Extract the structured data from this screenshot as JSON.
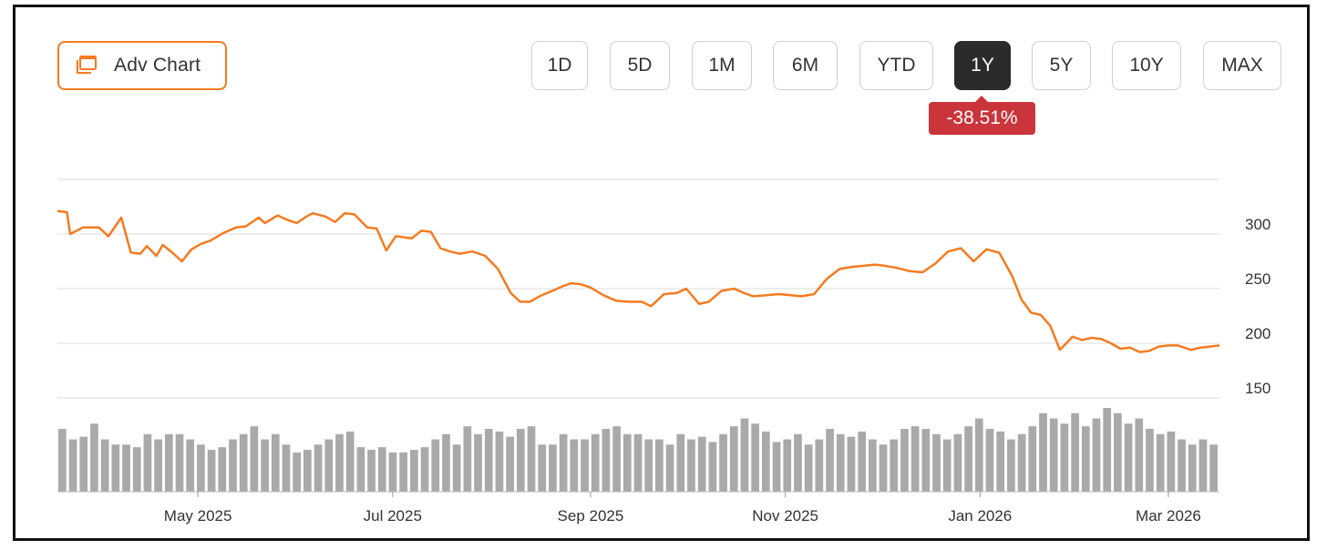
{
  "toolbar": {
    "adv_chart_label": "Adv Chart",
    "ranges": [
      "1D",
      "5D",
      "1M",
      "6M",
      "YTD",
      "1Y",
      "5Y",
      "10Y",
      "MAX"
    ],
    "active_range": "1Y",
    "change_label": "-38.51%",
    "change_color": "#c9353a",
    "accent_color": "#f47b20"
  },
  "chart_data": {
    "type": "line",
    "ylim": [
      150,
      350
    ],
    "yticks": [
      150,
      200,
      250,
      300
    ],
    "x_tick_labels": [
      "May 2025",
      "Jul 2025",
      "Sep 2025",
      "Nov 2025",
      "Jan 2026",
      "Mar 2026"
    ],
    "x_tick_dates": [
      "2025-05-01",
      "2025-07-01",
      "2025-09-01",
      "2025-11-01",
      "2026-01-01",
      "2026-03-01"
    ],
    "series": [
      {
        "color": "#f47b20",
        "x": [
          "2025-03-18",
          "2025-03-21",
          "2025-03-22",
          "2025-03-26",
          "2025-03-31",
          "2025-04-03",
          "2025-04-07",
          "2025-04-10",
          "2025-04-13",
          "2025-04-15",
          "2025-04-18",
          "2025-04-20",
          "2025-04-23",
          "2025-04-26",
          "2025-04-29",
          "2025-05-02",
          "2025-05-05",
          "2025-05-09",
          "2025-05-13",
          "2025-05-16",
          "2025-05-20",
          "2025-05-22",
          "2025-05-26",
          "2025-05-29",
          "2025-06-01",
          "2025-06-04",
          "2025-06-06",
          "2025-06-10",
          "2025-06-13",
          "2025-06-16",
          "2025-06-19",
          "2025-06-23",
          "2025-06-26",
          "2025-06-29",
          "2025-07-02",
          "2025-07-07",
          "2025-07-10",
          "2025-07-13",
          "2025-07-16",
          "2025-07-19",
          "2025-07-22",
          "2025-07-26",
          "2025-07-30",
          "2025-08-03",
          "2025-08-07",
          "2025-08-10",
          "2025-08-13",
          "2025-08-16",
          "2025-08-20",
          "2025-08-24",
          "2025-08-26",
          "2025-08-29",
          "2025-09-01",
          "2025-09-05",
          "2025-09-09",
          "2025-09-13",
          "2025-09-17",
          "2025-09-20",
          "2025-09-24",
          "2025-09-28",
          "2025-10-01",
          "2025-10-05",
          "2025-10-08",
          "2025-10-12",
          "2025-10-16",
          "2025-10-19",
          "2025-10-22",
          "2025-10-26",
          "2025-10-30",
          "2025-11-03",
          "2025-11-06",
          "2025-11-10",
          "2025-11-14",
          "2025-11-18",
          "2025-11-22",
          "2025-11-26",
          "2025-11-29",
          "2025-12-02",
          "2025-12-06",
          "2025-12-10",
          "2025-12-14",
          "2025-12-18",
          "2025-12-22",
          "2025-12-26",
          "2025-12-30",
          "2026-01-03",
          "2026-01-07",
          "2026-01-11",
          "2026-01-14",
          "2026-01-17",
          "2026-01-20",
          "2026-01-23",
          "2026-01-26",
          "2026-01-30",
          "2026-02-02",
          "2026-02-05",
          "2026-02-08",
          "2026-02-11",
          "2026-02-14",
          "2026-02-17",
          "2026-02-20",
          "2026-02-23",
          "2026-02-26",
          "2026-03-01",
          "2026-03-04",
          "2026-03-08",
          "2026-03-11",
          "2026-03-14",
          "2026-03-17"
        ],
        "values": [
          321,
          320,
          300,
          306,
          306,
          298,
          315,
          283,
          282,
          289,
          280,
          290,
          283,
          275,
          286,
          291,
          294,
          301,
          306,
          307,
          315,
          310,
          317,
          313,
          310,
          316,
          319,
          316,
          311,
          319,
          318,
          306,
          305,
          285,
          298,
          296,
          303,
          302,
          287,
          284,
          282,
          284,
          280,
          268,
          246,
          238,
          238,
          243,
          248,
          253,
          255,
          254,
          251,
          244,
          239,
          238,
          238,
          234,
          245,
          246,
          250,
          236,
          238,
          248,
          250,
          246,
          243,
          244,
          245,
          244,
          243,
          245,
          259,
          268,
          270,
          271,
          272,
          271,
          269,
          266,
          265,
          273,
          284,
          287,
          275,
          286,
          283,
          262,
          240,
          228,
          226,
          216,
          194,
          206,
          203,
          205,
          204,
          200,
          195,
          196,
          192,
          193,
          197,
          198,
          198,
          194,
          196,
          197,
          198
        ]
      }
    ],
    "volume_unit": "relative",
    "volume": [
      24,
      20,
      21,
      26,
      20,
      18,
      18,
      17,
      22,
      20,
      22,
      22,
      20,
      18,
      16,
      17,
      20,
      22,
      25,
      20,
      22,
      18,
      15,
      16,
      18,
      20,
      22,
      23,
      17,
      16,
      17,
      15,
      15,
      16,
      17,
      20,
      22,
      18,
      25,
      22,
      24,
      23,
      21,
      24,
      25,
      18,
      18,
      22,
      20,
      20,
      22,
      24,
      25,
      22,
      22,
      20,
      20,
      18,
      22,
      20,
      21,
      19,
      22,
      25,
      28,
      26,
      23,
      19,
      20,
      22,
      18,
      20,
      24,
      22,
      21,
      23,
      20,
      18,
      20,
      24,
      25,
      24,
      22,
      20,
      22,
      25,
      28,
      24,
      23,
      20,
      22,
      25,
      30,
      28,
      26,
      30,
      25,
      28,
      32,
      30,
      26,
      28,
      24,
      22,
      23,
      20,
      18,
      20,
      18
    ]
  }
}
